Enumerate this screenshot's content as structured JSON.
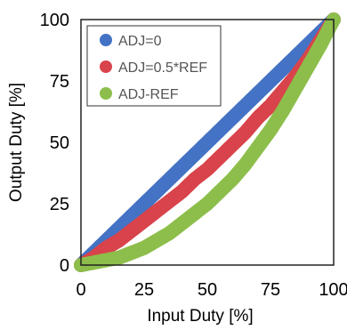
{
  "chart_data": {
    "type": "scatter",
    "xlabel": "Input Duty [%]",
    "ylabel": "Output Duty [%]",
    "xlim": [
      0,
      100
    ],
    "ylim": [
      0,
      100
    ],
    "x_ticks": [
      "0",
      "25",
      "50",
      "75",
      "100"
    ],
    "y_ticks": [
      "0",
      "25",
      "50",
      "75",
      "100"
    ],
    "grid": false,
    "legend_position": "top-left",
    "x": [
      0,
      5,
      10,
      15,
      20,
      25,
      30,
      35,
      40,
      45,
      50,
      55,
      60,
      65,
      70,
      75,
      80,
      85,
      90,
      95,
      100
    ],
    "series": [
      {
        "name": "ADJ=0",
        "color": "#4472C4",
        "values": [
          0,
          5,
          10,
          15,
          20,
          25,
          30,
          35,
          40,
          45,
          50,
          55,
          60,
          65,
          70,
          75,
          80,
          85,
          90,
          95,
          100
        ]
      },
      {
        "name": "ADJ=0.5*REF",
        "color": "#D9434B",
        "values": [
          0,
          3,
          7,
          10,
          14,
          18,
          22,
          26,
          30,
          35,
          39,
          44,
          49,
          54,
          60,
          65,
          71,
          77,
          84,
          92,
          100
        ]
      },
      {
        "name": "ADJ-REF",
        "color": "#8DBE4B",
        "values": [
          0,
          1,
          2,
          3,
          5,
          7,
          10,
          13,
          17,
          21,
          25,
          30,
          35,
          41,
          48,
          55,
          63,
          72,
          81,
          90,
          100
        ]
      }
    ]
  }
}
